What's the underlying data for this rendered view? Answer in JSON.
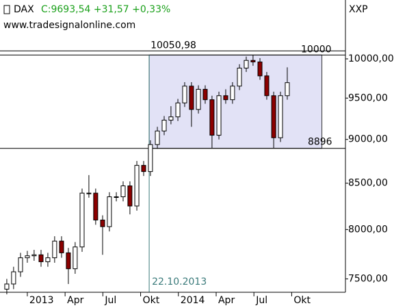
{
  "chart_data": {
    "type": "candlestick",
    "title": "DAX",
    "subtitle": "C:9693,54 +31,57 +0,33%",
    "source": "www.tradesignalonline.com",
    "y_axis_label": "XXP",
    "x": [
      -1.63,
      -1.09,
      -0.54,
      0,
      0.54,
      1.09,
      1.63,
      2.17,
      2.72,
      3.26,
      3.8,
      4.35,
      4.89,
      5.43,
      5.98,
      6.52,
      7.07,
      7.61,
      8.15,
      8.7,
      9.24,
      9.78,
      10.33,
      10.87,
      11.41,
      11.96,
      12.5,
      13.04,
      13.59,
      14.13,
      14.67,
      15.22,
      15.76,
      16.3,
      16.85,
      17.39,
      17.93,
      18.48,
      19.02,
      19.57,
      20.11,
      20.65
    ],
    "open": [
      7400,
      7450,
      7570,
      7710,
      7730,
      7740,
      7670,
      7710,
      7880,
      7760,
      7600,
      7820,
      8390,
      8390,
      8100,
      8030,
      8350,
      8350,
      8470,
      8250,
      8700,
      8630,
      8940,
      9100,
      9230,
      9270,
      9440,
      9650,
      9360,
      9610,
      9480,
      9050,
      9530,
      9480,
      9650,
      9880,
      9980,
      9960,
      9780,
      9530,
      9020,
      9530
    ],
    "high": [
      7500,
      7620,
      7760,
      7780,
      7790,
      7790,
      7760,
      7930,
      7930,
      7810,
      7870,
      8440,
      8590,
      8440,
      8150,
      8400,
      8400,
      8520,
      8520,
      8750,
      8750,
      8990,
      9150,
      9280,
      9400,
      9490,
      9700,
      9700,
      9660,
      9660,
      9530,
      9580,
      9610,
      9700,
      9930,
      10030,
      10050.98,
      10010,
      9830,
      9580,
      9580,
      9890
    ],
    "low": [
      7350,
      7400,
      7520,
      7660,
      7680,
      7620,
      7620,
      7660,
      7710,
      7450,
      7550,
      7770,
      8340,
      8050,
      7740,
      7980,
      8300,
      8300,
      8160,
      8200,
      8580,
      8580,
      8890,
      9050,
      9180,
      9220,
      9390,
      9150,
      9310,
      9430,
      8900,
      9000,
      9430,
      9430,
      9600,
      9830,
      9910,
      9730,
      9480,
      8900,
      8970,
      9480
    ],
    "close": [
      7450,
      7570,
      7710,
      7730,
      7740,
      7670,
      7710,
      7880,
      7760,
      7600,
      7820,
      8390,
      8390,
      8100,
      8030,
      8350,
      8350,
      8470,
      8250,
      8700,
      8630,
      8940,
      9100,
      9230,
      9270,
      9440,
      9650,
      9360,
      9610,
      9480,
      9050,
      9530,
      9480,
      9650,
      9880,
      9980,
      9960,
      9780,
      9530,
      9020,
      9530,
      9694
    ],
    "up_color": "#ffffff",
    "down_color": "#8b0000",
    "xlim": [
      -2.17,
      25.27
    ],
    "xticks": [
      {
        "value": 0,
        "label": "2013"
      },
      {
        "value": 3,
        "label": "Apr"
      },
      {
        "value": 6,
        "label": "Jul"
      },
      {
        "value": 9,
        "label": "Okt"
      },
      {
        "value": 12,
        "label": "2014"
      },
      {
        "value": 15,
        "label": "Apr"
      },
      {
        "value": 18,
        "label": "Jul"
      },
      {
        "value": 21,
        "label": "Okt"
      }
    ],
    "ylim": [
      7370,
      10800
    ],
    "log_scale": true,
    "yticks": [
      {
        "value": 7500,
        "label": "7500,00"
      },
      {
        "value": 8000,
        "label": "8000,00"
      },
      {
        "value": 8500,
        "label": "8500,00"
      },
      {
        "value": 9000,
        "label": "9000,00"
      },
      {
        "value": 9500,
        "label": "9500,00"
      },
      {
        "value": 10000,
        "label": "10000,00"
      }
    ],
    "hlines": [
      {
        "value": 10050.98,
        "label": "10050,98"
      },
      {
        "value": 8896,
        "label": "8896"
      }
    ],
    "vline": {
      "value": 9.68,
      "label": "22.10.2013"
    },
    "box_end": 23.4,
    "box_color": "#e2e2f6",
    "level_label": "10000"
  }
}
